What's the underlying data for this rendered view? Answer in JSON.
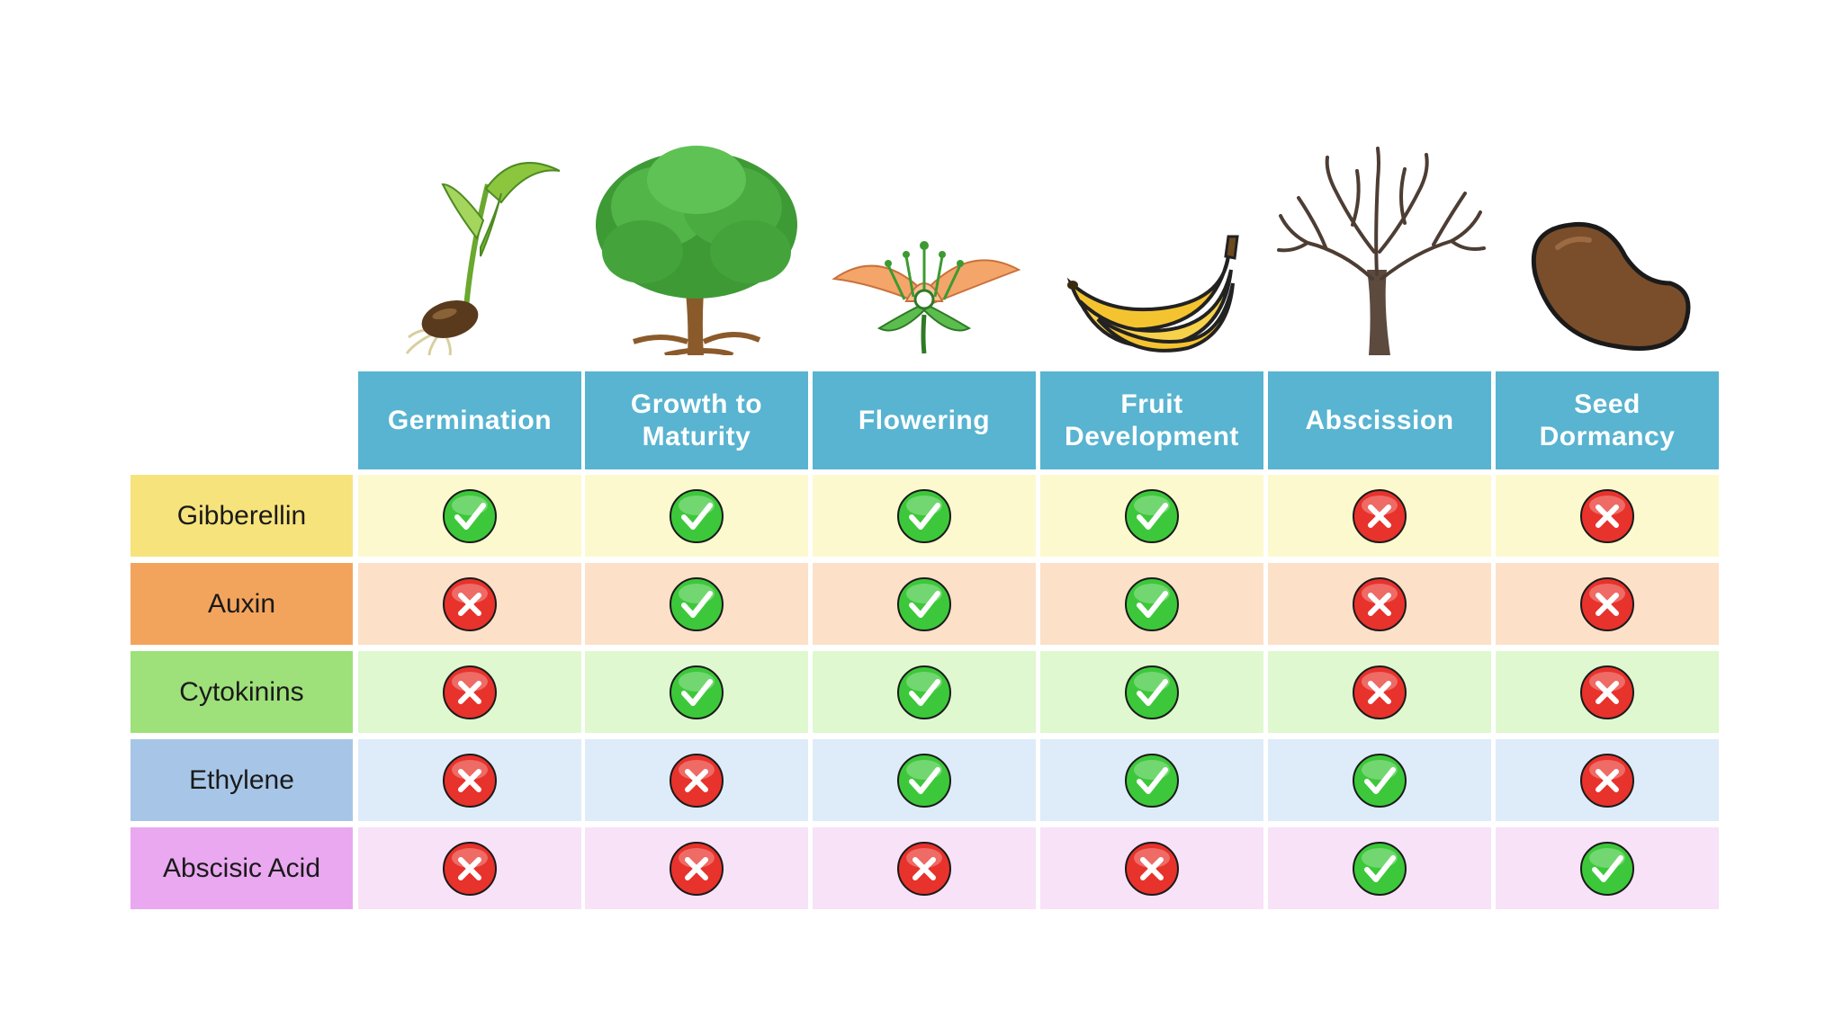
{
  "columns": [
    {
      "label_lines": [
        "Germination"
      ],
      "icon": "seedling-icon"
    },
    {
      "label_lines": [
        "Growth to",
        "Maturity"
      ],
      "icon": "tree-icon"
    },
    {
      "label_lines": [
        "Flowering"
      ],
      "icon": "flower-icon"
    },
    {
      "label_lines": [
        "Fruit",
        "Development"
      ],
      "icon": "banana-icon"
    },
    {
      "label_lines": [
        "Abscission"
      ],
      "icon": "bare-tree-icon"
    },
    {
      "label_lines": [
        "Seed",
        "Dormancy"
      ],
      "icon": "seed-icon"
    }
  ],
  "rows": [
    {
      "label": "Gibberellin",
      "label_bg": "#f7e37b",
      "cell_bg": "#fdf9cf",
      "values": [
        true,
        true,
        true,
        true,
        false,
        false
      ]
    },
    {
      "label": "Auxin",
      "label_bg": "#f3a45c",
      "cell_bg": "#fce0c8",
      "values": [
        false,
        true,
        true,
        true,
        false,
        false
      ]
    },
    {
      "label": "Cytokinins",
      "label_bg": "#9ee07a",
      "cell_bg": "#dff8cf",
      "values": [
        false,
        true,
        true,
        true,
        false,
        false
      ]
    },
    {
      "label": "Ethylene",
      "label_bg": "#a7c6e7",
      "cell_bg": "#deebf9",
      "values": [
        false,
        false,
        true,
        true,
        true,
        false
      ]
    },
    {
      "label": "Abscisic Acid",
      "label_bg": "#eaa8f0",
      "cell_bg": "#f7e2f8",
      "values": [
        false,
        false,
        false,
        false,
        true,
        true
      ]
    }
  ],
  "colors": {
    "header_bg": "#58b4d1",
    "check_green": "#3cc83a",
    "cross_red": "#e8322c"
  },
  "mark_icons": {
    "true": "check-icon",
    "false": "cross-icon"
  }
}
